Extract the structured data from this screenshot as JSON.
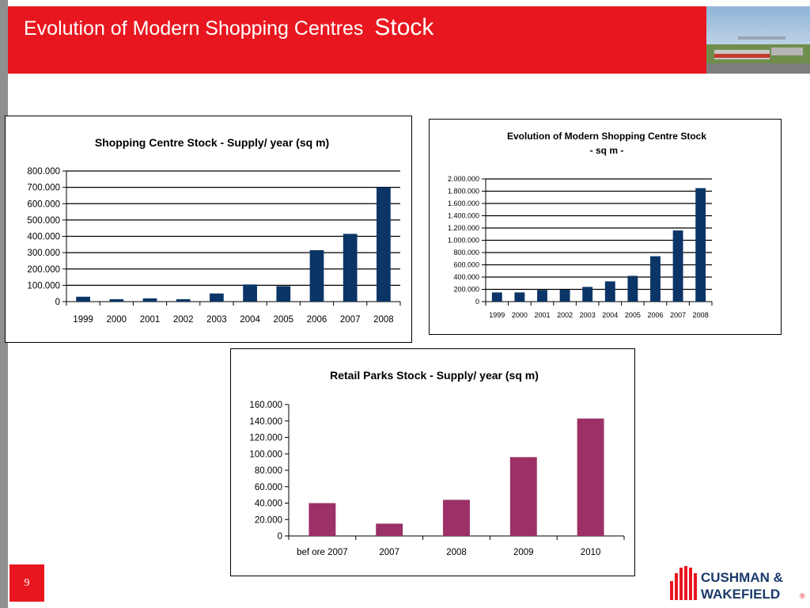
{
  "slide": {
    "title_part1": "Evolution of  Modern Shopping Centres",
    "title_part2": "Stock",
    "page_number": "9",
    "brand_line1": "CUSHMAN &",
    "brand_line2": "WAKEFIELD",
    "brand_mark": "®"
  },
  "colors": {
    "header_red": "#e8171f",
    "navy_bar": "#0a3566",
    "maroon_bar": "#9b3166"
  },
  "chart_data": [
    {
      "type": "bar",
      "title": "Shopping Centre Stock - Supply/ year (sq m)",
      "categories": [
        "1999",
        "2000",
        "2001",
        "2002",
        "2003",
        "2004",
        "2005",
        "2006",
        "2007",
        "2008"
      ],
      "values": [
        30000,
        15000,
        20000,
        15000,
        50000,
        105000,
        95000,
        315000,
        415000,
        700000
      ],
      "ylim": [
        0,
        800000
      ],
      "ytick_labels": [
        "0",
        "100.000",
        "200.000",
        "300.000",
        "400.000",
        "500.000",
        "600.000",
        "700.000",
        "800.000"
      ],
      "grid": true,
      "legend": "none"
    },
    {
      "type": "bar",
      "title_line1": "Evolution of Modern Shopping Centre Stock",
      "title_line2": "- sq m -",
      "categories": [
        "1999",
        "2000",
        "2001",
        "2002",
        "2003",
        "2004",
        "2005",
        "2006",
        "2007",
        "2008"
      ],
      "values": [
        150000,
        150000,
        190000,
        195000,
        240000,
        330000,
        420000,
        740000,
        1160000,
        1850000
      ],
      "ylim": [
        0,
        2000000
      ],
      "ytick_labels": [
        "0",
        "200.000",
        "400.000",
        "600.000",
        "800.000",
        "1.000.000",
        "1.200.000",
        "1.400.000",
        "1.600.000",
        "1.800.000",
        "2.000.000"
      ],
      "grid": true,
      "legend": "none"
    },
    {
      "type": "bar",
      "title": "Retail Parks Stock - Supply/ year (sq m)",
      "categories": [
        "bef ore 2007",
        "2007",
        "2008",
        "2009",
        "2010"
      ],
      "values": [
        40000,
        15000,
        44000,
        96000,
        143000
      ],
      "ylim": [
        0,
        160000
      ],
      "ytick_labels": [
        "0",
        "20.000",
        "40.000",
        "60.000",
        "80.000",
        "100.000",
        "120.000",
        "140.000",
        "160.000"
      ],
      "grid": false,
      "legend": "none"
    }
  ]
}
